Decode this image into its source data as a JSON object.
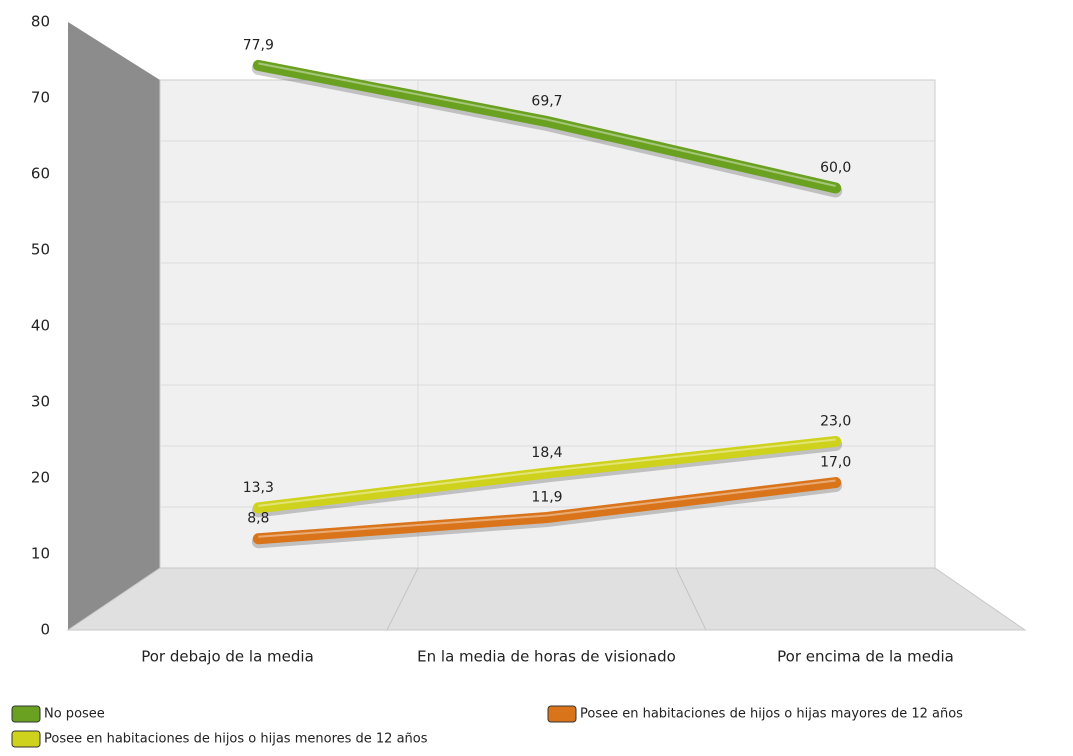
{
  "chart_data": {
    "type": "line",
    "categories": [
      "Por debajo de la media",
      "En la media de horas de visionado",
      "Por encima de la media"
    ],
    "series": [
      {
        "name": "No posee",
        "color": "#6aa121",
        "values": [
          77.9,
          69.7,
          60.0
        ],
        "value_labels": [
          "77,9",
          "69,7",
          "60,0"
        ]
      },
      {
        "name": "Posee en habitaciones de hijos o hijas menores de 12 años",
        "color": "#cfd21c",
        "values": [
          13.3,
          18.4,
          23.0
        ],
        "value_labels": [
          "13,3",
          "18,4",
          "23,0"
        ]
      },
      {
        "name": "Posee en habitaciones de hijos o hijas mayores de 12 años",
        "color": "#d9741a",
        "values": [
          8.8,
          11.9,
          17.0
        ],
        "value_labels": [
          "8,8",
          "11,9",
          "17,0"
        ]
      }
    ],
    "ylim": [
      0,
      80
    ],
    "yticks": [
      0,
      10,
      20,
      30,
      40,
      50,
      60,
      70,
      80
    ],
    "grid": true
  }
}
